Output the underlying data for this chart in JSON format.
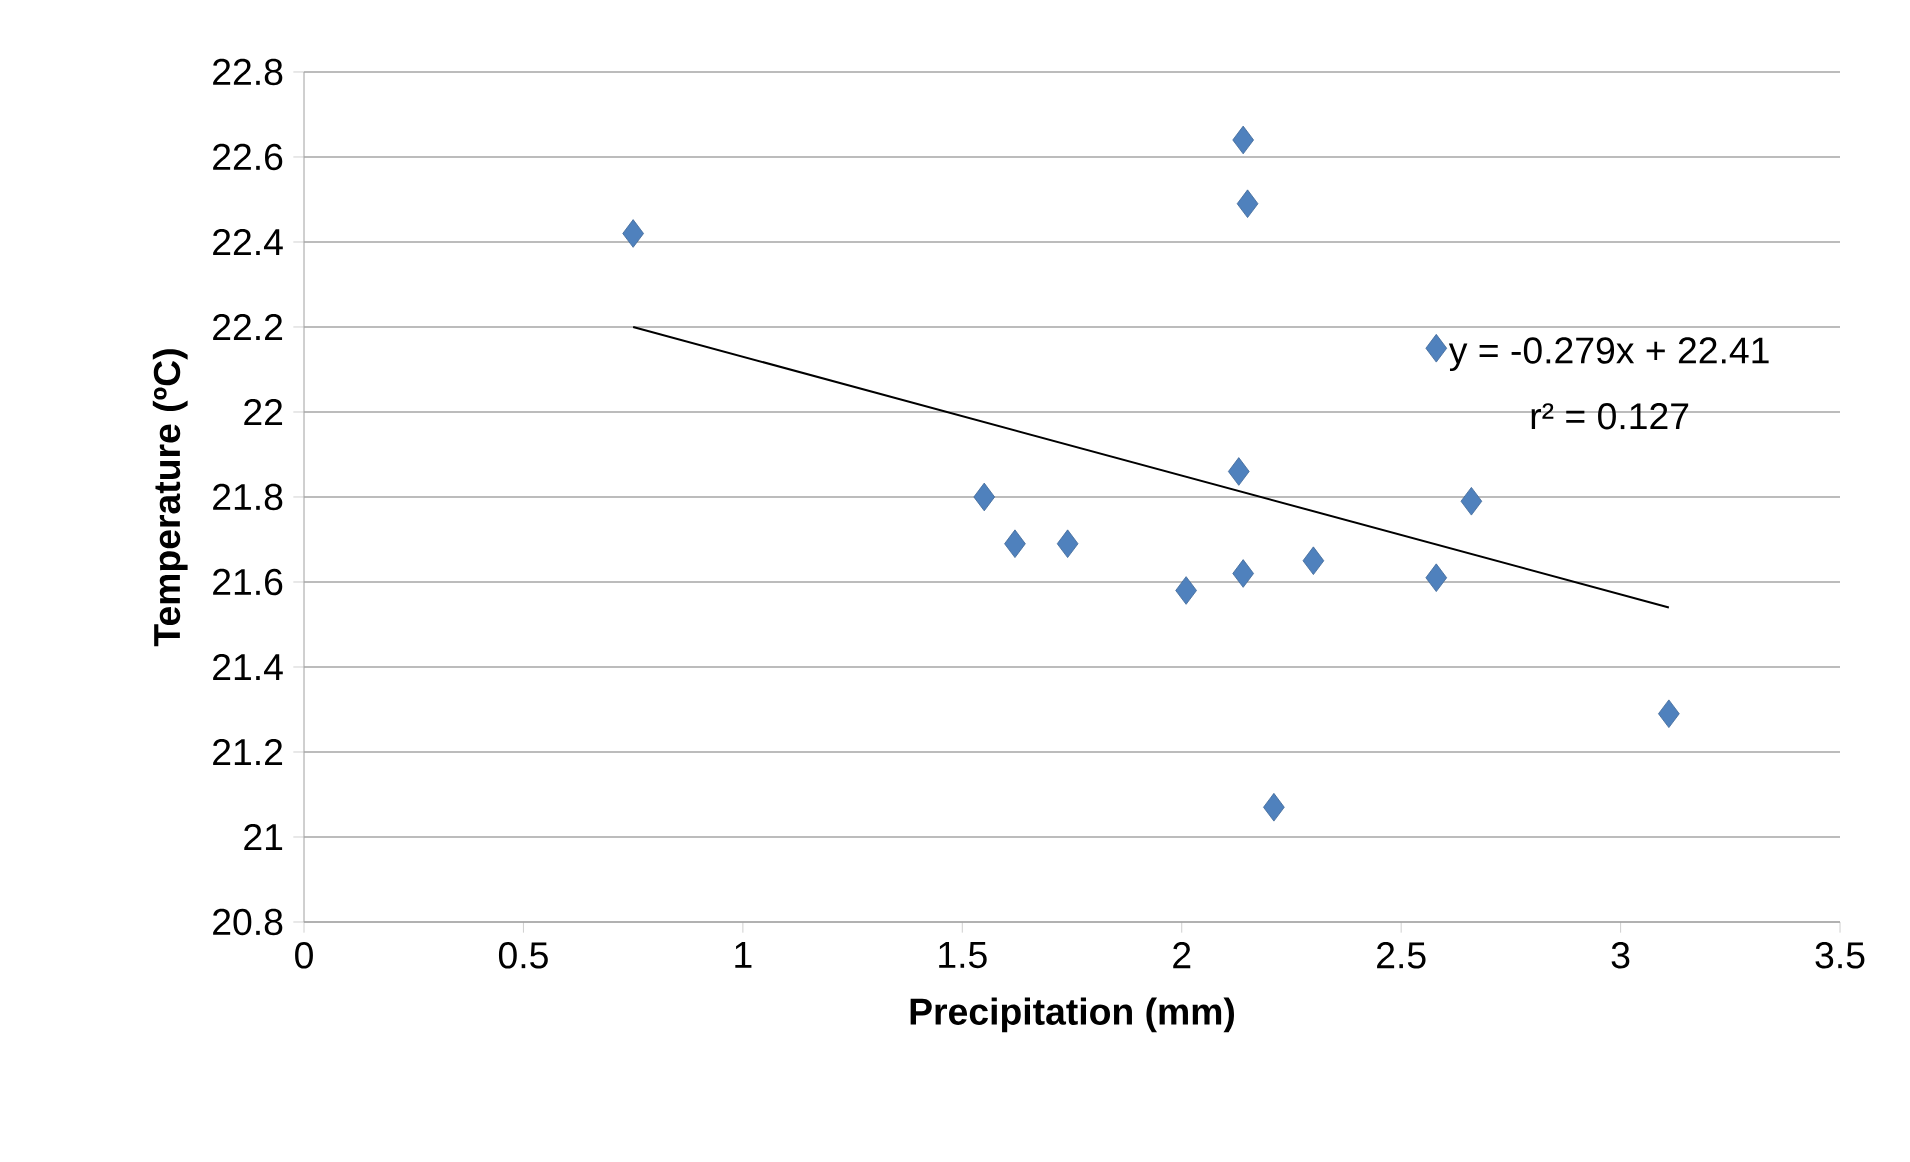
{
  "chart_data": {
    "type": "scatter",
    "xlabel": "Precipitation (mm)",
    "ylabel": "Temperature (ºC)",
    "xlim": [
      0,
      3.5
    ],
    "xticks": [
      0,
      0.5,
      1,
      1.5,
      2,
      2.5,
      3,
      3.5
    ],
    "ylim": [
      20.8,
      22.8
    ],
    "yticks": [
      20.8,
      21,
      21.2,
      21.4,
      21.6,
      21.8,
      22,
      22.2,
      22.4,
      22.6,
      22.8
    ],
    "grid": "y",
    "marker": "diamond",
    "series": [
      {
        "color": "#4f81bd",
        "x": [
          0.75,
          2.14,
          2.15,
          2.58,
          1.55,
          1.62,
          1.74,
          2.01,
          2.13,
          2.14,
          2.3,
          2.58,
          2.66,
          3.11,
          2.21
        ],
        "values": [
          22.42,
          22.64,
          22.49,
          22.15,
          21.8,
          21.69,
          21.69,
          21.58,
          21.86,
          21.62,
          21.65,
          21.61,
          21.79,
          21.29,
          21.07
        ]
      },
      {
        "type": "line",
        "color": "#000000",
        "marker": "none",
        "x": [
          0.75,
          3.11
        ],
        "values": [
          22.2,
          21.54
        ]
      }
    ],
    "annotations": [
      "y = -0.279x + 22.41",
      "r² = 0.127"
    ]
  }
}
